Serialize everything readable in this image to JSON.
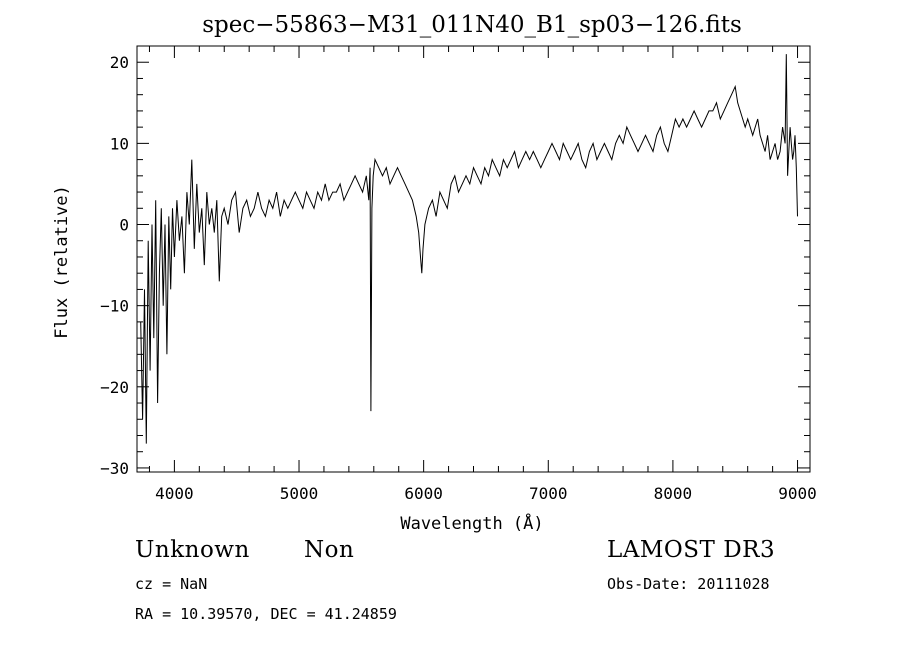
{
  "chart_data": {
    "type": "line",
    "title": "spec−55863−M31_011N40_B1_sp03−126.fits",
    "xlabel": "Wavelength (Å)",
    "ylabel": "Flux (relative)",
    "xlim": [
      3700,
      9100
    ],
    "ylim": [
      -30.5,
      22
    ],
    "xticks": [
      4000,
      5000,
      6000,
      7000,
      8000,
      9000
    ],
    "xtick_labels": [
      "4000",
      "5000",
      "6000",
      "7000",
      "8000",
      "9000"
    ],
    "yticks": [
      -30,
      -20,
      -10,
      0,
      10,
      20
    ],
    "ytick_labels": [
      "−30",
      "−20",
      "−10",
      "0",
      "10",
      "20"
    ],
    "grid": false,
    "legend": "none",
    "series": [
      {
        "color": "#000000",
        "x": [
          3730,
          3745,
          3760,
          3775,
          3790,
          3805,
          3820,
          3835,
          3850,
          3865,
          3880,
          3895,
          3910,
          3925,
          3940,
          3955,
          3970,
          3985,
          4000,
          4020,
          4040,
          4060,
          4080,
          4100,
          4120,
          4140,
          4160,
          4180,
          4200,
          4220,
          4240,
          4260,
          4280,
          4300,
          4320,
          4340,
          4360,
          4380,
          4400,
          4430,
          4460,
          4490,
          4520,
          4550,
          4580,
          4610,
          4640,
          4670,
          4700,
          4730,
          4760,
          4790,
          4820,
          4850,
          4880,
          4910,
          4940,
          4970,
          5000,
          5030,
          5060,
          5090,
          5120,
          5150,
          5180,
          5210,
          5240,
          5270,
          5300,
          5330,
          5360,
          5390,
          5420,
          5450,
          5480,
          5510,
          5540,
          5560,
          5570,
          5577,
          5585,
          5595,
          5610,
          5640,
          5670,
          5700,
          5730,
          5760,
          5790,
          5820,
          5850,
          5880,
          5910,
          5940,
          5960,
          5975,
          5985,
          5995,
          6010,
          6040,
          6070,
          6100,
          6130,
          6160,
          6190,
          6220,
          6250,
          6280,
          6310,
          6340,
          6370,
          6400,
          6430,
          6460,
          6490,
          6520,
          6550,
          6580,
          6610,
          6640,
          6670,
          6700,
          6730,
          6760,
          6790,
          6820,
          6850,
          6880,
          6910,
          6940,
          6970,
          7000,
          7030,
          7060,
          7090,
          7120,
          7150,
          7180,
          7210,
          7240,
          7270,
          7300,
          7330,
          7360,
          7390,
          7420,
          7450,
          7480,
          7510,
          7540,
          7570,
          7600,
          7630,
          7660,
          7690,
          7720,
          7750,
          7780,
          7810,
          7840,
          7870,
          7900,
          7930,
          7960,
          7990,
          8020,
          8050,
          8080,
          8110,
          8140,
          8170,
          8200,
          8230,
          8260,
          8290,
          8320,
          8350,
          8380,
          8410,
          8440,
          8470,
          8500,
          8520,
          8540,
          8560,
          8580,
          8600,
          8620,
          8640,
          8660,
          8680,
          8700,
          8720,
          8740,
          8760,
          8780,
          8800,
          8820,
          8840,
          8860,
          8880,
          8900,
          8910,
          8920,
          8930,
          8940,
          8950,
          8960,
          8970,
          8980,
          8990,
          9000
        ],
        "y": [
          -12,
          -24,
          -8,
          -27,
          -2,
          -18,
          0,
          -14,
          3,
          -22,
          -6,
          2,
          -10,
          0,
          -16,
          1,
          -8,
          2,
          -4,
          3,
          -2,
          1,
          -6,
          4,
          0,
          8,
          -3,
          5,
          -1,
          2,
          -5,
          4,
          0,
          2,
          -1,
          3,
          -7,
          1,
          2,
          0,
          3,
          4,
          -1,
          2,
          3,
          1,
          2,
          4,
          2,
          1,
          3,
          2,
          4,
          1,
          3,
          2,
          3,
          4,
          3,
          2,
          4,
          3,
          2,
          4,
          3,
          5,
          3,
          4,
          4,
          5,
          3,
          4,
          5,
          6,
          5,
          4,
          6,
          3,
          7,
          -23,
          2,
          6,
          8,
          7,
          6,
          7,
          5,
          6,
          7,
          6,
          5,
          4,
          3,
          1,
          -1,
          -4,
          -6,
          -3,
          0,
          2,
          3,
          1,
          4,
          3,
          2,
          5,
          6,
          4,
          5,
          6,
          5,
          7,
          6,
          5,
          7,
          6,
          8,
          7,
          6,
          8,
          7,
          8,
          9,
          7,
          8,
          9,
          8,
          9,
          8,
          7,
          8,
          9,
          10,
          9,
          8,
          10,
          9,
          8,
          9,
          10,
          8,
          7,
          9,
          10,
          8,
          9,
          10,
          9,
          8,
          10,
          11,
          10,
          12,
          11,
          10,
          9,
          10,
          11,
          10,
          9,
          11,
          12,
          10,
          9,
          11,
          13,
          12,
          13,
          12,
          13,
          14,
          13,
          12,
          13,
          14,
          14,
          15,
          13,
          14,
          15,
          16,
          17,
          15,
          14,
          13,
          12,
          13,
          12,
          11,
          12,
          13,
          11,
          10,
          9,
          11,
          8,
          9,
          10,
          8,
          9,
          12,
          10,
          21,
          6,
          9,
          12,
          10,
          8,
          9,
          11,
          7,
          1
        ]
      }
    ]
  },
  "info": {
    "object_class": "Unknown",
    "subclass": "Non",
    "survey": "LAMOST DR3",
    "cz": "cz = NaN",
    "obs_date": "Obs-Date: 20111028",
    "radec": "RA =  10.39570, DEC =  41.24859"
  }
}
